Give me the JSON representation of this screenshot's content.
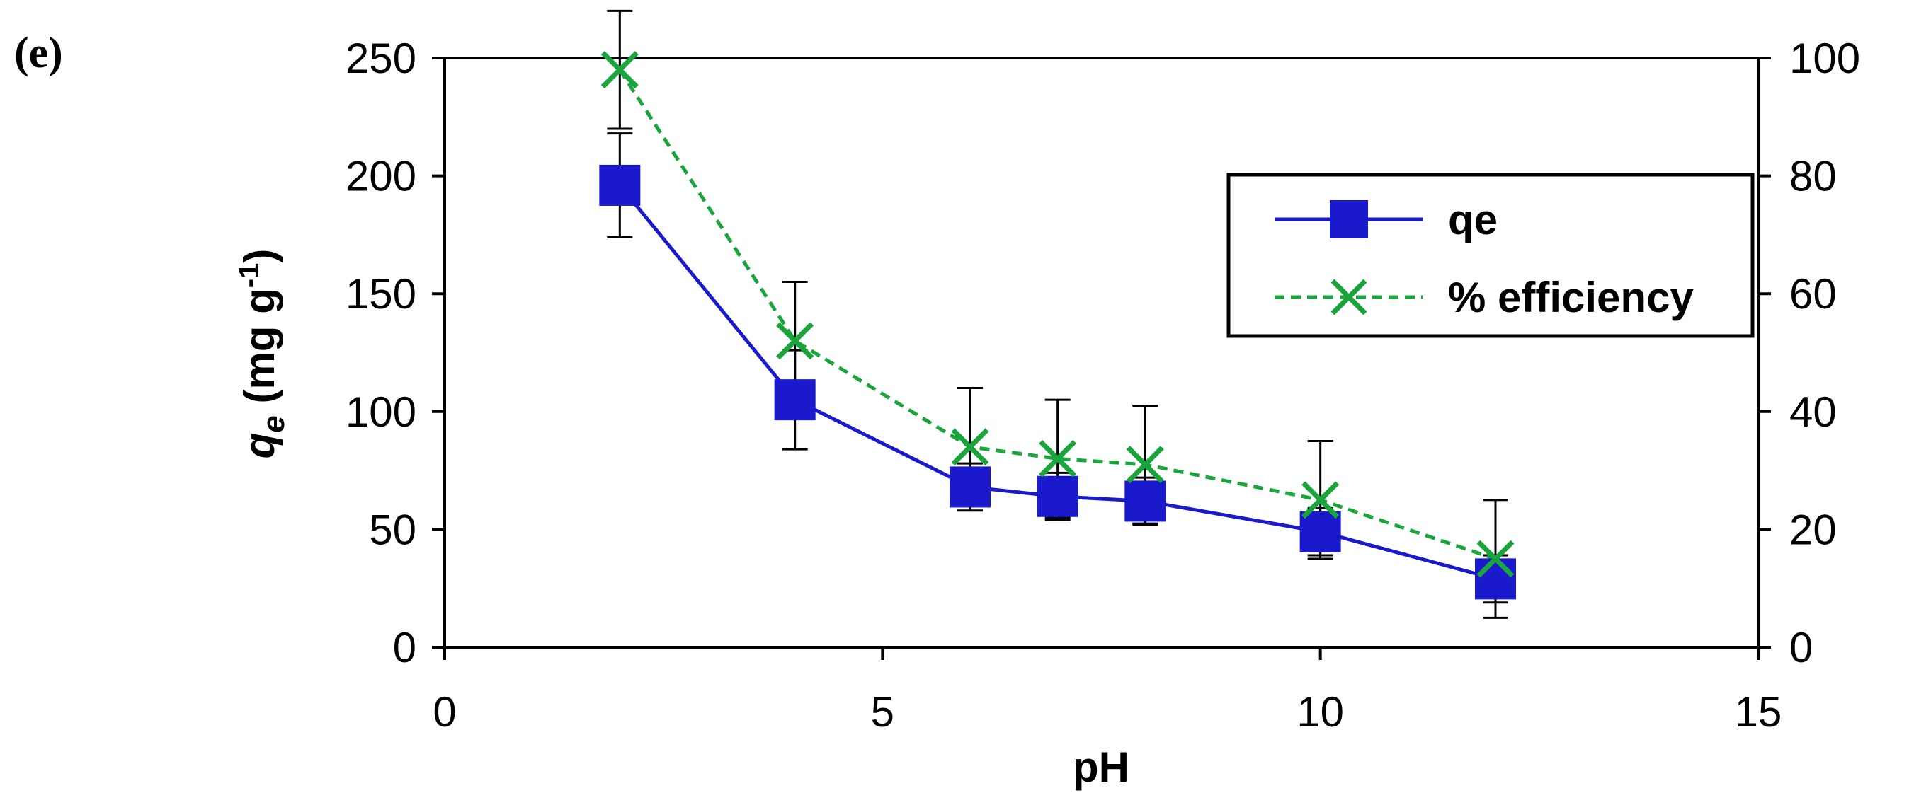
{
  "panel_label": "(e)",
  "chart_data": {
    "type": "line",
    "xlabel": "pH",
    "ylabel_main": "q",
    "ylabel_sub": "e",
    "ylabel_units": " (mg g",
    "ylabel_sup": "-1",
    "ylabel_close": ")",
    "xlim": [
      0,
      15
    ],
    "ylim": [
      0,
      250
    ],
    "y2lim": [
      0,
      100
    ],
    "x_ticks": [
      0,
      5,
      10,
      15
    ],
    "x_tick_labels": [
      "0",
      "5",
      "10",
      "15"
    ],
    "y_ticks": [
      0,
      50,
      100,
      150,
      200,
      250
    ],
    "y_tick_labels": [
      "0",
      "50",
      "100",
      "150",
      "200",
      "250"
    ],
    "y2_ticks": [
      0,
      20,
      40,
      60,
      80,
      100
    ],
    "y2_tick_labels": [
      "0",
      "20",
      "40",
      "60",
      "80",
      "100"
    ],
    "legend_position": "top-right",
    "series": [
      {
        "name": "qe",
        "axis": "left",
        "color": "#1a1acc",
        "marker": "square",
        "line_style": "solid",
        "x": [
          2,
          4,
          6,
          7,
          8,
          10,
          12
        ],
        "values": [
          196,
          105,
          68,
          64,
          62,
          49,
          29
        ],
        "error": [
          22,
          21,
          10,
          10,
          10,
          10,
          10
        ]
      },
      {
        "name": "% efficiency",
        "axis": "right",
        "color": "#1aa53c",
        "marker": "x",
        "line_style": "dashed",
        "x": [
          2,
          4,
          6,
          7,
          8,
          10,
          12
        ],
        "values": [
          98,
          52,
          34,
          32,
          31,
          25,
          15
        ],
        "error": [
          10,
          10,
          10,
          10,
          10,
          10,
          10
        ]
      }
    ]
  }
}
